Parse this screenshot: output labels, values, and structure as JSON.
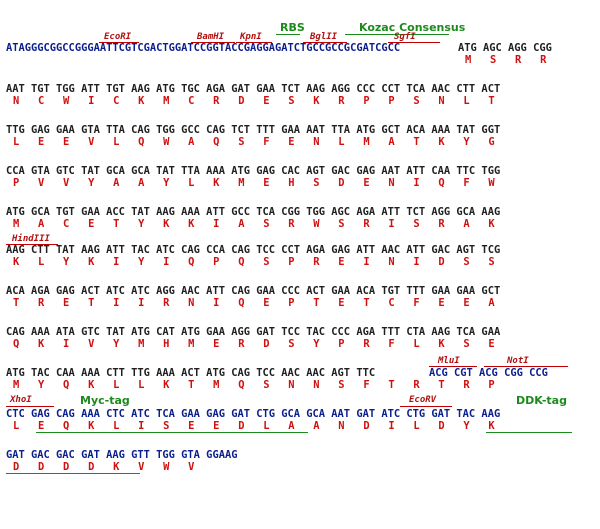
{
  "colors": {
    "dna_default": "#202020",
    "dna_vector": "#0a1e8c",
    "amino_acid": "#d01010",
    "restriction_site": "#b01010",
    "feature_tag": "#1c8a1c"
  },
  "top_labels": {
    "rbs": "RBS",
    "kozac": "Kozac Consensus",
    "ecori": "EcoRI",
    "bamhi": "BamHI",
    "kpni": "KpnI",
    "bglii": "BglII",
    "sgfi": "SgfI"
  },
  "rows": [
    {
      "dna_vector": "ATAGGGCGGCCGGGAATTCGTCGACTGGATCCGGTACCGAGGAGATCTGCCGCCGCGATCGCC",
      "dna_insert": "ATG AGC AGG CGG",
      "aa_text": "M   S   R   R"
    },
    {
      "dna": "AAT TGT TGG ATT TGT AAG ATG TGC AGA GAT GAA TCT AAG AGG CCC CCT TCA AAC CTT ACT",
      "aa_text": "N   C   W   I   C   K   M   C   R   D   E   S   K   R   P   P   S   N   L   T"
    },
    {
      "dna": "TTG GAG GAA GTA TTA CAG TGG GCC CAG TCT TTT GAA AAT TTA ATG GCT ACA AAA TAT GGT",
      "aa_text": "L   E   E   V   L   Q   W   A   Q   S   F   E   N   L   M   A   T   K   Y   G"
    },
    {
      "dna": "CCA GTA GTC TAT GCA GCA TAT TTA AAA ATG GAG CAC AGT GAC GAG AAT ATT CAA TTC TGG",
      "aa_text": "P   V   V   Y   A   A   Y   L   K   M   E   H   S   D   E   N   I   Q   F   W"
    },
    {
      "dna": "ATG GCA TGT GAA ACC TAT AAG AAA ATT GCC TCA CGG TGG AGC AGA ATT TCT AGG GCA AAG",
      "aa_text": "M   A   C   E   T   Y   K   K   I   A   S   R   W   S   R   I   S   R   A   K"
    },
    {
      "site": "HindIII",
      "dna": "AAG CTT TAT AAG ATT TAC ATC CAG CCA CAG TCC CCT AGA GAG ATT AAC ATT GAC AGT TCG",
      "aa_text": "K   L   Y   K   I   Y   I   Q   P   Q   S   P   R   E   I   N   I   D   S   S"
    },
    {
      "dna": "ACA AGA GAG ACT ATC ATC AGG AAC ATT CAG GAA CCC ACT GAA ACA TGT TTT GAA GAA GCT",
      "aa_text": "T   R   E   T   I   I   R   N   I   Q   E   P   T   E   T   C   F   E   E   A"
    },
    {
      "dna": "CAG AAA ATA GTC TAT ATG CAT ATG GAA AGG GAT TCC TAC CCC AGA TTT CTA AAG TCA GAA",
      "aa_text": "Q   K   I   V   Y   M   H   M   E   R   D   S   Y   P   R   F   L   K   S   E"
    },
    {
      "site_mlui": "MluI",
      "site_noti": "NotI",
      "dna_insert": "ATG TAC CAA AAA CTT TTG AAA ACT ATG CAG TCC AAC AAC AGT TTC",
      "dna_vector": "ACG CGT ACG CGG CCG",
      "aa_text": "M   Y   Q   K   L   L   K   T   M   Q   S   N   N   S   F   T   R   T   R   P"
    },
    {
      "site_xhoi": "XhoI",
      "tag_myc": "Myc-tag",
      "site_ecorv": "EcoRV",
      "tag_ddk": "DDK-tag",
      "dna": "CTC GAG CAG AAA CTC ATC TCA GAA GAG GAT CTG GCA GCA AAT GAT ATC CTG GAT TAC AAG",
      "aa_text": "L   E   Q   K   L   I   S   E   E   D   L   A   A   N   D   I   L   D   Y   K"
    },
    {
      "dna": "GAT GAC GAC GAT AAG GTT TGG GTA GGAAG",
      "aa_text": "D   D   D   D   K   V   W   V"
    }
  ]
}
